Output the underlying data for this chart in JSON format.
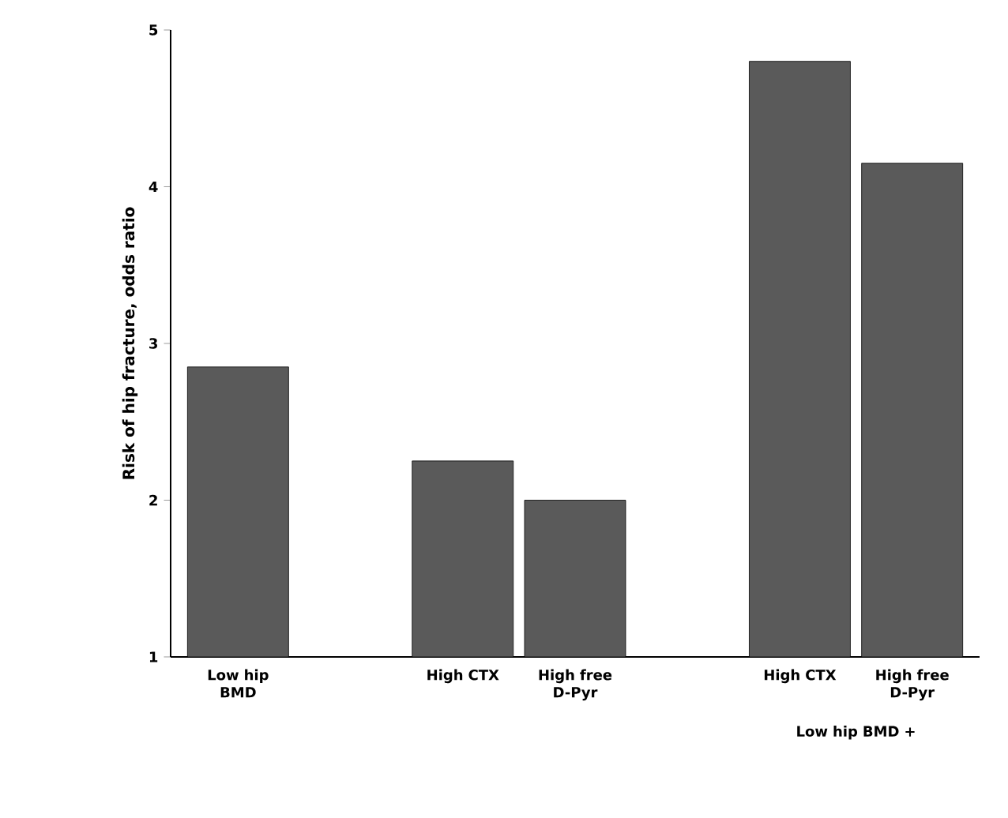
{
  "chart_data": {
    "type": "bar",
    "ylabel": "Risk of hip fracture, odds ratio",
    "categories": [
      "Low hip BMD",
      null,
      "High CTX",
      "High free D-Pyr",
      null,
      "High CTX",
      "High free D-Pyr"
    ],
    "values": [
      2.85,
      null,
      2.25,
      2.0,
      null,
      4.8,
      4.15
    ],
    "color": "#5a5a5a",
    "ylim": [
      1,
      5
    ],
    "yticks": [
      1,
      2,
      3,
      4,
      5
    ],
    "grid": false,
    "annotations": [
      "Low hip BMD +"
    ]
  }
}
